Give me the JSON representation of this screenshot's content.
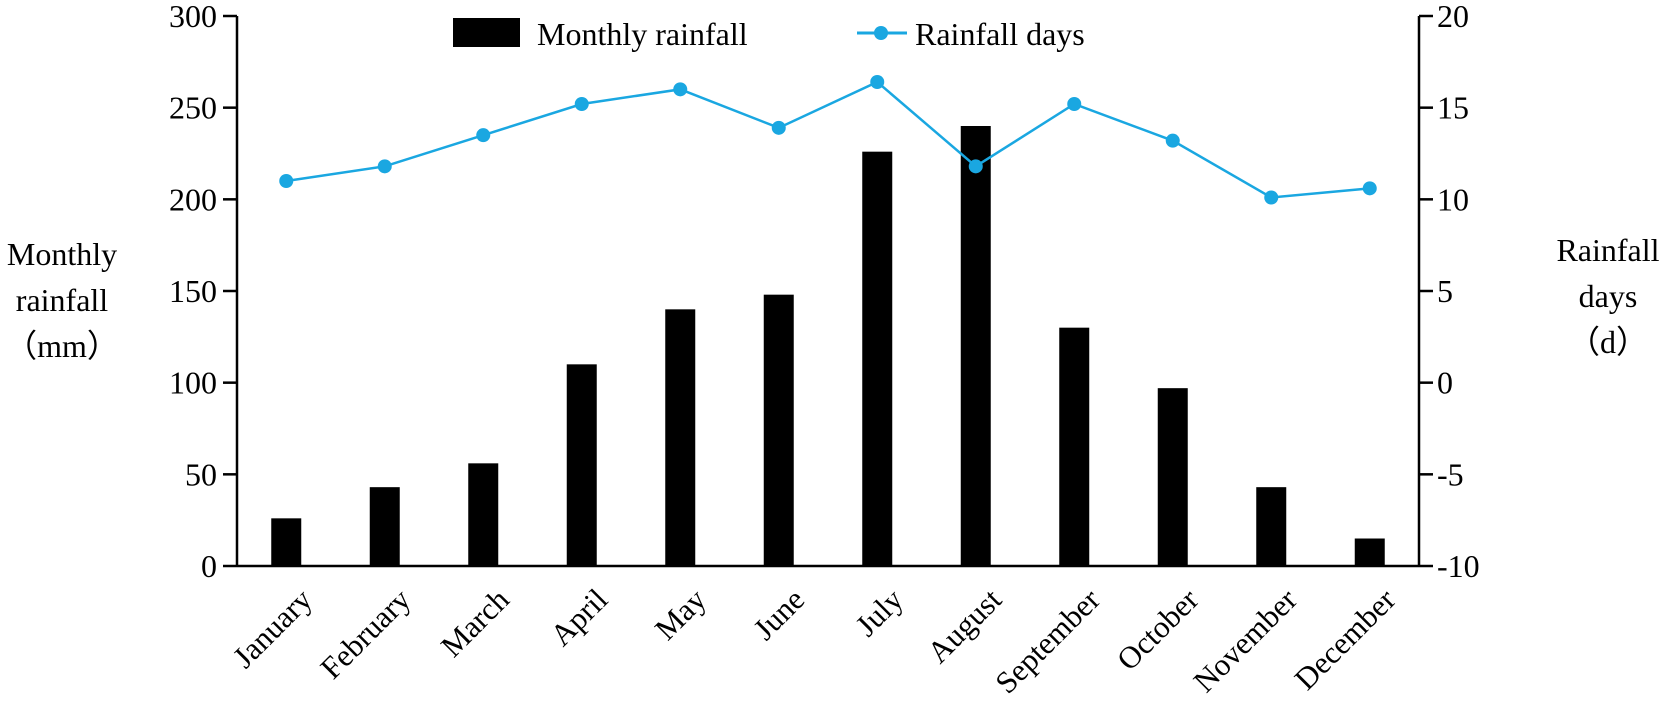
{
  "chart_data": {
    "type": "bar",
    "categories": [
      "January",
      "February",
      "March",
      "April",
      "May",
      "June",
      "July",
      "August",
      "September",
      "October",
      "November",
      "December"
    ],
    "series": [
      {
        "name": "Monthly rainfall",
        "type": "bar",
        "axis": "left",
        "color": "#000000",
        "values": [
          26,
          43,
          56,
          110,
          140,
          148,
          226,
          240,
          130,
          97,
          43,
          15
        ]
      },
      {
        "name": "Rainfall days",
        "type": "line",
        "axis": "right",
        "color": "#1aa7e1",
        "values": [
          11.0,
          11.8,
          13.5,
          15.2,
          16.0,
          13.9,
          16.4,
          11.8,
          15.2,
          13.2,
          10.1,
          10.6
        ]
      }
    ],
    "y_left": {
      "label_lines": [
        "Monthly",
        "rainfall",
        "（mm）"
      ],
      "ylim": [
        0,
        300
      ],
      "ticks": [
        "0",
        "50",
        "100",
        "150",
        "200",
        "250",
        "300"
      ]
    },
    "y_right": {
      "label_lines": [
        "Rainfall",
        "days",
        "（d）"
      ],
      "ylim": [
        -10,
        20
      ],
      "ticks": [
        "-10",
        "-5",
        "0",
        "5",
        "10",
        "15",
        "20"
      ]
    },
    "legend": {
      "position": "top-center",
      "items": [
        "Monthly rainfall",
        "Rainfall days"
      ]
    },
    "grid": false
  }
}
